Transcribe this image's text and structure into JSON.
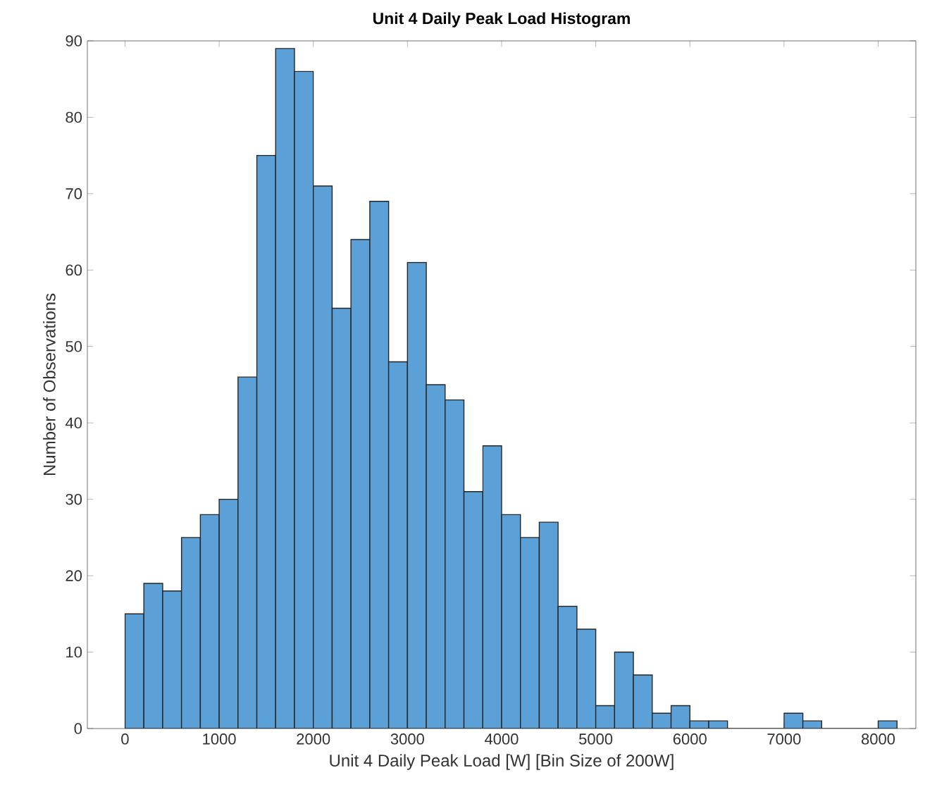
{
  "chart_data": {
    "type": "histogram",
    "title": "Unit 4 Daily Peak Load Histogram",
    "xlabel": "Unit 4 Daily Peak Load [W] [Bin Size of 200W]",
    "ylabel": "Number of Observations",
    "bins": [
      0,
      200,
      400,
      600,
      800,
      1000,
      1200,
      1400,
      1600,
      1800,
      2000,
      2200,
      2400,
      2600,
      2800,
      3000,
      3200,
      3400,
      3600,
      3800,
      4000,
      4200,
      4400,
      4600,
      4800,
      5000,
      5200,
      5400,
      5600,
      5800,
      6000,
      6200,
      6400,
      6600,
      6800,
      7000,
      7200,
      7400,
      7600,
      7800,
      8000,
      8200
    ],
    "values": [
      15,
      19,
      18,
      25,
      28,
      30,
      46,
      75,
      89,
      86,
      71,
      55,
      64,
      69,
      48,
      61,
      45,
      43,
      31,
      37,
      28,
      25,
      27,
      16,
      13,
      3,
      10,
      7,
      2,
      3,
      1,
      1,
      0,
      0,
      0,
      2,
      1,
      0,
      0,
      0,
      1
    ],
    "color": "#5ba0d6",
    "xlim": [
      -400,
      8400
    ],
    "xticks": [
      0,
      1000,
      2000,
      3000,
      4000,
      5000,
      6000,
      7000,
      8000
    ],
    "ylim": [
      0,
      90
    ],
    "yticks": [
      0,
      10,
      20,
      30,
      40,
      50,
      60,
      70,
      80,
      90
    ],
    "grid": false
  }
}
